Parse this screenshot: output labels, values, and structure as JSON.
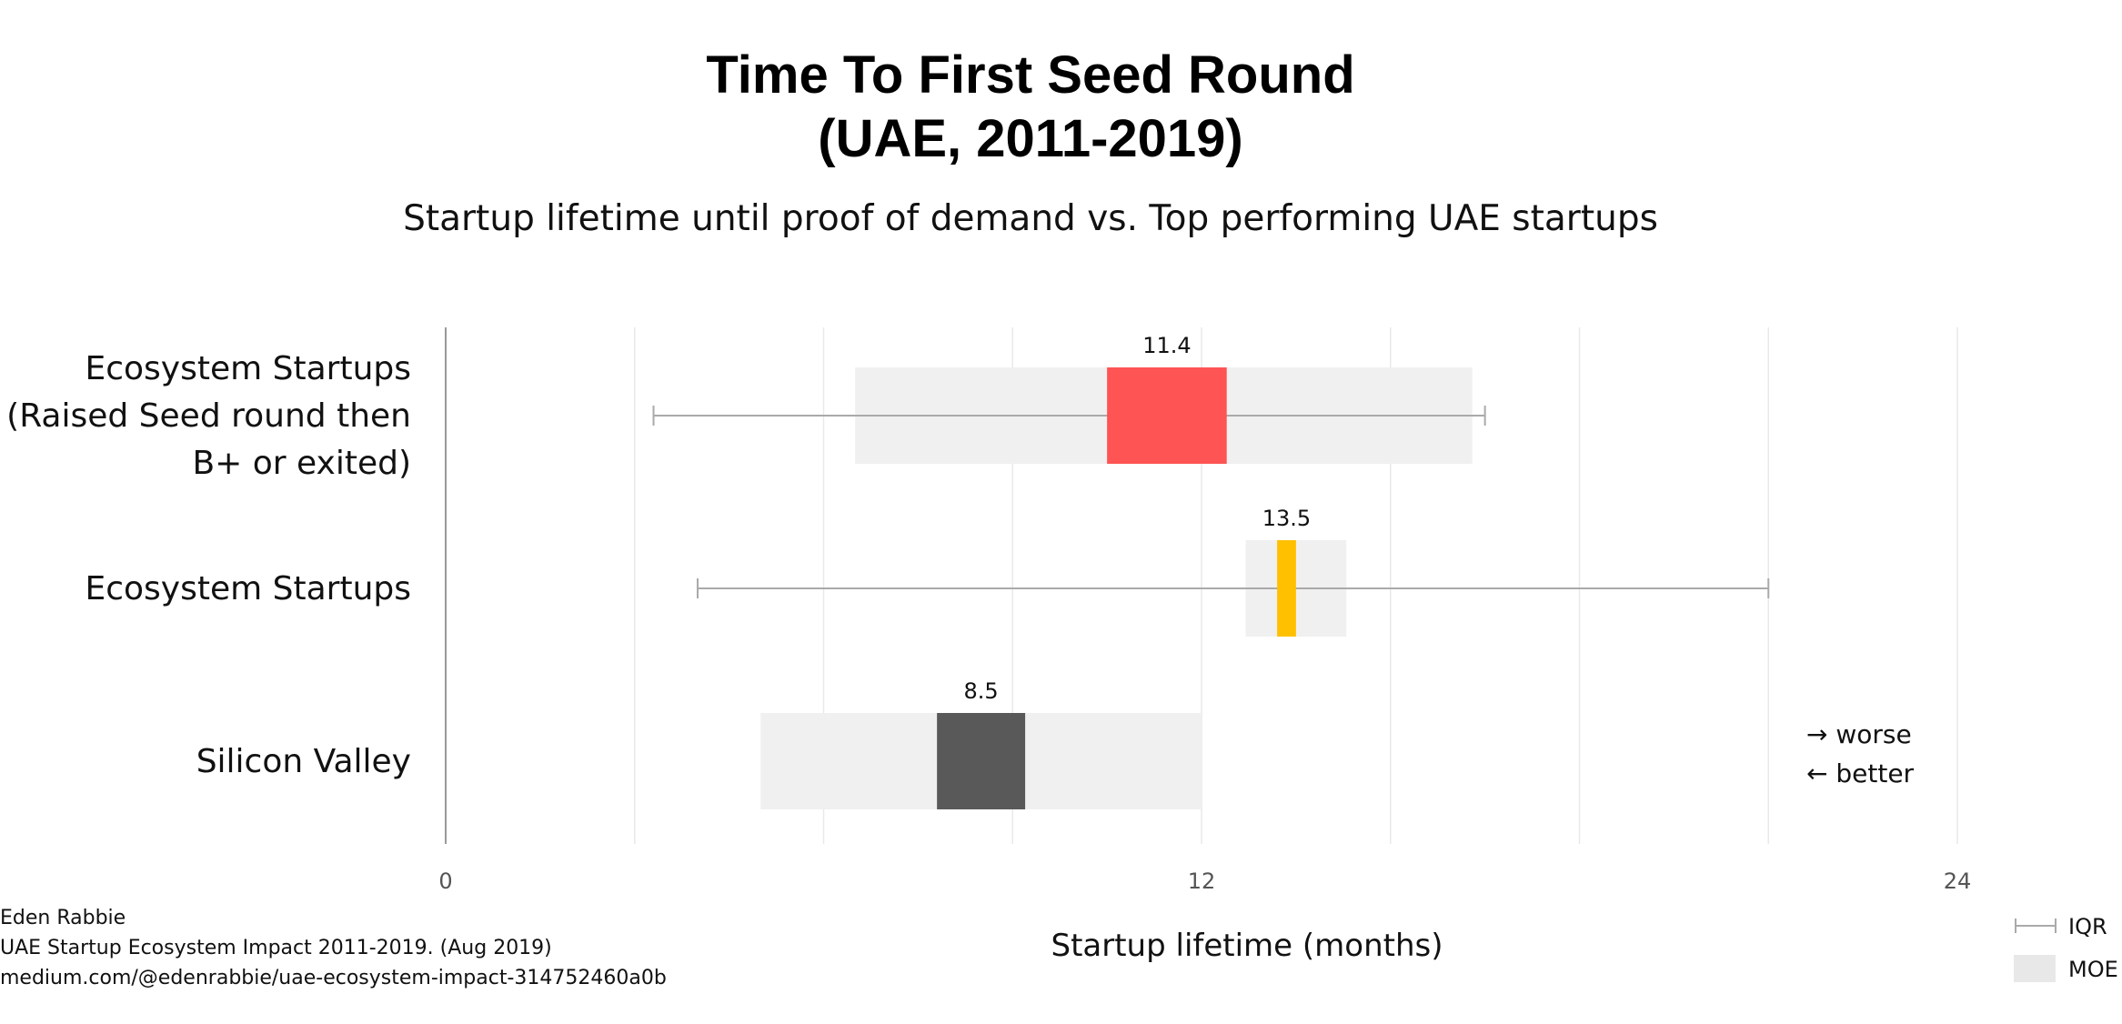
{
  "chart_data": {
    "type": "bar",
    "title_lines": [
      "Time To First Seed Round",
      "(UAE, 2011-2019)"
    ],
    "subtitle": "Startup lifetime until proof of demand vs. Top performing UAE startups",
    "xlabel": "Startup lifetime (months)",
    "xlim": [
      0,
      24
    ],
    "xticks": [
      "0",
      "12",
      "24"
    ],
    "grid": true,
    "categories": [
      {
        "label_lines": [
          "Ecosystem Startups",
          "(Raised Seed round then",
          "B+ or exited)"
        ],
        "value": 11.4,
        "value_label": "11.4",
        "box": [
          10.5,
          12.4
        ],
        "moe": [
          6.5,
          16.3
        ],
        "iqr": [
          3.3,
          16.5
        ],
        "color": "#ff5454"
      },
      {
        "label_lines": [
          "Ecosystem Startups"
        ],
        "value": 13.5,
        "value_label": "13.5",
        "box": [
          13.2,
          13.5
        ],
        "moe": [
          12.7,
          14.3
        ],
        "iqr": [
          4.0,
          21.0
        ],
        "color": "#ffc000"
      },
      {
        "label_lines": [
          "Silicon Valley"
        ],
        "value": 8.5,
        "value_label": "8.5",
        "box": [
          7.8,
          9.2
        ],
        "moe": [
          5.0,
          12.0
        ],
        "iqr": null,
        "color": "#595959"
      }
    ],
    "annotation_lines": [
      "→ worse",
      "← better"
    ],
    "legend": [
      {
        "label": "IQR",
        "kind": "whisker",
        "color": "#aaaaaa"
      },
      {
        "label": "MOE",
        "kind": "box",
        "color": "#e8e8e8"
      }
    ],
    "legend_position": "bottom-right"
  },
  "source_lines": [
    "Eden Rabbie",
    "UAE Startup Ecosystem Impact 2011-2019. (Aug 2019)",
    "medium.com/@edenrabbie/uae-ecosystem-impact-314752460a0b"
  ],
  "colors": {
    "moe_fill": "#f1f0f1",
    "iqr_line": "#aaaaaa",
    "grid": "#e9e9e9",
    "axis": "#999999"
  }
}
